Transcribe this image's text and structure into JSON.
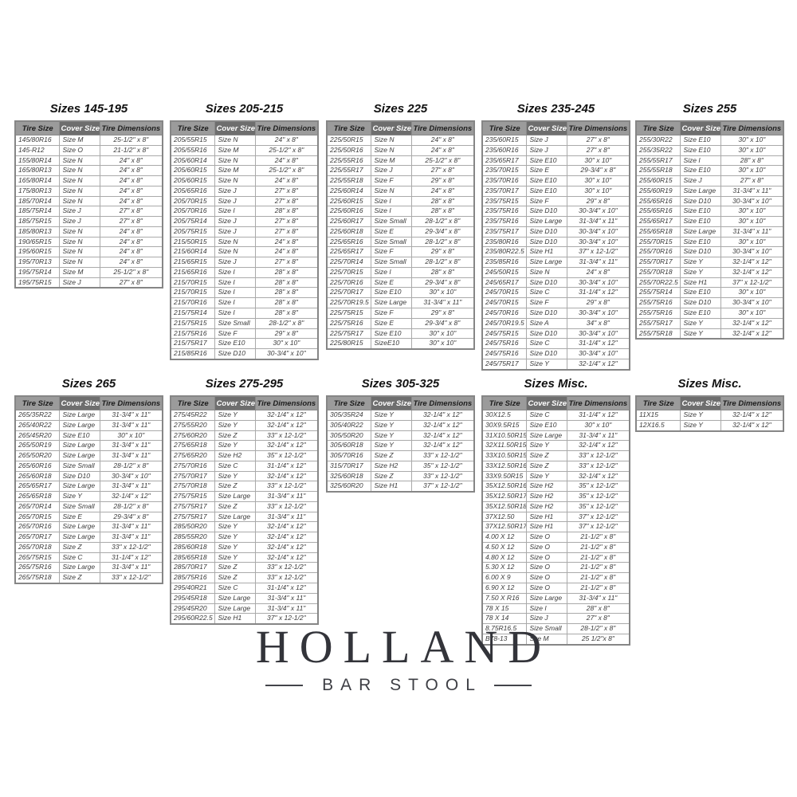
{
  "colors": {
    "header_bg": "#9b9b9b",
    "cover_header_bg": "#6e6e6e",
    "header_text": "#1d1d1d",
    "cover_header_text": "#ffffff",
    "cell_text": "#3a3a3a",
    "border": "#868686",
    "logo_text": "#33343a"
  },
  "column_headers": [
    "Tire Size",
    "Cover Size",
    "Tire Dimensions"
  ],
  "tables": [
    {
      "title": "Sizes 145-195",
      "rows": [
        [
          "145/80R16",
          "Size M",
          "25-1/2\" x 8\""
        ],
        [
          "145-R12",
          "Size O",
          "21-1/2\" x 8\""
        ],
        [
          "155/80R14",
          "Size N",
          "24\" x 8\""
        ],
        [
          "165/80R13",
          "Size N",
          "24\" x 8\""
        ],
        [
          "165/80R14",
          "Size N",
          "24\" x 8\""
        ],
        [
          "175/80R13",
          "Size N",
          "24\" x 8\""
        ],
        [
          "185/70R14",
          "Size N",
          "24\" x 8\""
        ],
        [
          "185/75R14",
          "Size J",
          "27\" x 8\""
        ],
        [
          "185/75R15",
          "Size J",
          "27\" x 8\""
        ],
        [
          "185/80R13",
          "Size N",
          "24\" x 8\""
        ],
        [
          "190/65R15",
          "Size N",
          "24\" x 8\""
        ],
        [
          "195/60R15",
          "Size N",
          "24\" x 8\""
        ],
        [
          "195/70R13",
          "Size N",
          "24\" x 8\""
        ],
        [
          "195/75R14",
          "Size M",
          "25-1/2\" x 8\""
        ],
        [
          "195/75R15",
          "Size J",
          "27\" x 8\""
        ]
      ]
    },
    {
      "title": "Sizes 205-215",
      "rows": [
        [
          "205/55R15",
          "Size N",
          "24\" x 8\""
        ],
        [
          "205/55R16",
          "Size M",
          "25-1/2\" x 8\""
        ],
        [
          "205/60R14",
          "Size N",
          "24\" x 8\""
        ],
        [
          "205/60R15",
          "Size M",
          "25-1/2\" x 8\""
        ],
        [
          "205/60R15",
          "Size N",
          "24\" x 8\""
        ],
        [
          "205/65R16",
          "Size J",
          "27\" x 8\""
        ],
        [
          "205/70R15",
          "Size J",
          "27\" x 8\""
        ],
        [
          "205/70R16",
          "Size I",
          "28\" x 8\""
        ],
        [
          "205/75R14",
          "Size J",
          "27\" x 8\""
        ],
        [
          "205/75R15",
          "Size J",
          "27\" x 8\""
        ],
        [
          "215/50R15",
          "Size N",
          "24\" x 8\""
        ],
        [
          "215/60R14",
          "Size N",
          "24\" x 8\""
        ],
        [
          "215/65R15",
          "Size J",
          "27\" x 8\""
        ],
        [
          "215/65R16",
          "Size I",
          "28\" x 8\""
        ],
        [
          "215/70R15",
          "Size I",
          "28\" x 8\""
        ],
        [
          "215/70R15",
          "Size I",
          "28\" x 8\""
        ],
        [
          "215/70R16",
          "Size I",
          "28\" x 8\""
        ],
        [
          "215/75R14",
          "Size I",
          "28\" x 8\""
        ],
        [
          "215/75R15",
          "Size Small",
          "28-1/2\" x 8\""
        ],
        [
          "215/75R16",
          "Size F",
          "29\" x 8\""
        ],
        [
          "215/75R17",
          "Size E10",
          "30\" x 10\""
        ],
        [
          "215/85R16",
          "Size D10",
          "30-3/4\" x 10\""
        ]
      ]
    },
    {
      "title": "Sizes 225",
      "rows": [
        [
          "225/50R15",
          "Size N",
          "24\" x 8\""
        ],
        [
          "225/50R16",
          "Size N",
          "24\" x 8\""
        ],
        [
          "225/55R16",
          "Size M",
          "25-1/2\" x 8\""
        ],
        [
          "225/55R17",
          "Size J",
          "27\" x 8\""
        ],
        [
          "225/55R18",
          "Size F",
          "29\" x 8\""
        ],
        [
          "225/60R14",
          "Size N",
          "24\" x 8\""
        ],
        [
          "225/60R15",
          "Size I",
          "28\" x 8\""
        ],
        [
          "225/60R16",
          "Size I",
          "28\" x 8\""
        ],
        [
          "225/60R17",
          "Size Small",
          "28-1/2\" x 8\""
        ],
        [
          "225/60R18",
          "Size E",
          "29-3/4\" x 8\""
        ],
        [
          "225/65R16",
          "Size Small",
          "28-1/2\" x 8\""
        ],
        [
          "225/65R17",
          "Size F",
          "29\" x 8\""
        ],
        [
          "225/70R14",
          "Size Small",
          "28-1/2\" x 8\""
        ],
        [
          "225/70R15",
          "Size I",
          "28\" x 8\""
        ],
        [
          "225/70R16",
          "Size E",
          "29-3/4\" x 8\""
        ],
        [
          "225/70R17",
          "Size E10",
          "30\" x 10\""
        ],
        [
          "225/70R19.5",
          "Size Large",
          "31-3/4\" x 11\""
        ],
        [
          "225/75R15",
          "Size F",
          "29\" x 8\""
        ],
        [
          "225/75R16",
          "Size E",
          "29-3/4\" x 8\""
        ],
        [
          "225/75R17",
          "Size E10",
          "30\" x 10\""
        ],
        [
          "225/80R15",
          "SizeE10",
          "30\" x 10\""
        ]
      ]
    },
    {
      "title": "Sizes 235-245",
      "rows": [
        [
          "235/60R15",
          "Size J",
          "27\" x 8\""
        ],
        [
          "235/60R16",
          "Size J",
          "27\" x 8\""
        ],
        [
          "235/65R17",
          "Size E10",
          "30\" x 10\""
        ],
        [
          "235/70R15",
          "Size E",
          "29-3/4\" x 8\""
        ],
        [
          "235/70R16",
          "Size E10",
          "30\" x 10\""
        ],
        [
          "235/70R17",
          "Size E10",
          "30\" x 10\""
        ],
        [
          "235/75R15",
          "Size F",
          "29\" x 8\""
        ],
        [
          "235/75R16",
          "Size D10",
          "30-3/4\" x 10\""
        ],
        [
          "235/75R16",
          "Size Large",
          "31-3/4\" x 11\""
        ],
        [
          "235/75R17",
          "Size D10",
          "30-3/4\" x 10\""
        ],
        [
          "235/80R16",
          "Size D10",
          "30-3/4\" x 10\""
        ],
        [
          "235/80R22.5",
          "Size H1",
          "37\" x 12-1/2\""
        ],
        [
          "235/85R16",
          "Size Large",
          "31-3/4\" x 11\""
        ],
        [
          "245/50R15",
          "Size N",
          "24\" x 8\""
        ],
        [
          "245/65R17",
          "Size D10",
          "30-3/4\" x 10\""
        ],
        [
          "245/70R15",
          "Size C",
          "31-1/4\" x 12\""
        ],
        [
          "245/70R15",
          "Size F",
          "29\" x 8\""
        ],
        [
          "245/70R16",
          "Size D10",
          "30-3/4\" x 10\""
        ],
        [
          "245/70R19.5",
          "Size A",
          "34\" x 8\""
        ],
        [
          "245/75R15",
          "Size D10",
          "30-3/4\" x 10\""
        ],
        [
          "245/75R16",
          "Size C",
          "31-1/4\" x 12\""
        ],
        [
          "245/75R16",
          "Size D10",
          "30-3/4\" x 10\""
        ],
        [
          "245/75R17",
          "Size Y",
          "32-1/4\" x 12\""
        ]
      ]
    },
    {
      "title": "Sizes 255",
      "rows": [
        [
          "255/30R22",
          "Size E10",
          "30\" x 10\""
        ],
        [
          "255/35R22",
          "Size E10",
          "30\" x 10\""
        ],
        [
          "255/55R17",
          "Size I",
          "28\" x 8\""
        ],
        [
          "255/55R18",
          "Size E10",
          "30\" x 10\""
        ],
        [
          "255/60R15",
          "Size J",
          "27\" x 8\""
        ],
        [
          "255/60R19",
          "Size Large",
          "31-3/4\" x 11\""
        ],
        [
          "255/65R16",
          "Size D10",
          "30-3/4\" x 10\""
        ],
        [
          "255/65R16",
          "Size E10",
          "30\" x 10\""
        ],
        [
          "255/65R17",
          "Size E10",
          "30\" x 10\""
        ],
        [
          "255/65R18",
          "Size Large",
          "31-3/4\" x 11\""
        ],
        [
          "255/70R15",
          "Size E10",
          "30\" x 10\""
        ],
        [
          "255/70R16",
          "Size D10",
          "30-3/4\" x 10\""
        ],
        [
          "255/70R17",
          "Size Y",
          "32-1/4\" x 12\""
        ],
        [
          "255/70R18",
          "Size Y",
          "32-1/4\" x 12\""
        ],
        [
          "255/70R22.5",
          "Size H1",
          "37\" x 12-1/2\""
        ],
        [
          "255/75R14",
          "Size E10",
          "30\" x 10\""
        ],
        [
          "255/75R16",
          "Size D10",
          "30-3/4\" x 10\""
        ],
        [
          "255/75R16",
          "Size E10",
          "30\" x 10\""
        ],
        [
          "255/75R17",
          "Size Y",
          "32-1/4\" x 12\""
        ],
        [
          "255/75R18",
          "Size Y",
          "32-1/4\" x 12\""
        ]
      ]
    },
    {
      "title": "Sizes 265",
      "rows": [
        [
          "265/35R22",
          "Size Large",
          "31-3/4\" x 11\""
        ],
        [
          "265/40R22",
          "Size Large",
          "31-3/4\" x 11\""
        ],
        [
          "265/45R20",
          "Size E10",
          "30\" x 10\""
        ],
        [
          "265/50R19",
          "Size Large",
          "31-3/4\" x 11\""
        ],
        [
          "265/50R20",
          "Size Large",
          "31-3/4\" x 11\""
        ],
        [
          "265/60R16",
          "Size Small",
          "28-1/2\" x 8\""
        ],
        [
          "265/60R18",
          "Size D10",
          "30-3/4\" x 10\""
        ],
        [
          "265/65R17",
          "Size Large",
          "31-3/4\" x 11\""
        ],
        [
          "265/65R18",
          "Size Y",
          "32-1/4\" x 12\""
        ],
        [
          "265/70R14",
          "Size Small",
          "28-1/2\" x 8\""
        ],
        [
          "265/70R15",
          "Size E",
          "29-3/4\" x 8\""
        ],
        [
          "265/70R16",
          "Size Large",
          "31-3/4\" x 11\""
        ],
        [
          "265/70R17",
          "Size Large",
          "31-3/4\" x 11\""
        ],
        [
          "265/70R18",
          "Size Z",
          "33\" x 12-1/2\""
        ],
        [
          "265/75R15",
          "Size C",
          "31-1/4\" x 12\""
        ],
        [
          "265/75R16",
          "Size Large",
          "31-3/4\" x 11\""
        ],
        [
          "265/75R18",
          "Size Z",
          "33\" x 12-1/2\""
        ]
      ]
    },
    {
      "title": "Sizes 275-295",
      "rows": [
        [
          "275/45R22",
          "Size Y",
          "32-1/4\" x 12\""
        ],
        [
          "275/55R20",
          "Size Y",
          "32-1/4\" x 12\""
        ],
        [
          "275/60R20",
          "Size Z",
          "33\" x 12-1/2\""
        ],
        [
          "275/65R18",
          "Size Y",
          "32-1/4\" x 12\""
        ],
        [
          "275/65R20",
          "Size H2",
          "35\" x 12-1/2\""
        ],
        [
          "275/70R16",
          "Size C",
          "31-1/4\" x 12\""
        ],
        [
          "275/70R17",
          "Size Y",
          "32-1/4\" x 12\""
        ],
        [
          "275/70R18",
          "Size Z",
          "33\" x 12-1/2\""
        ],
        [
          "275/75R15",
          "Size Large",
          "31-3/4\" x 11\""
        ],
        [
          "275/75R17",
          "Size Z",
          "33\" x 12-1/2\""
        ],
        [
          "275/75R17",
          "Size Large",
          "31-3/4\" x 11\""
        ],
        [
          "285/50R20",
          "Size Y",
          "32-1/4\" x 12\""
        ],
        [
          "285/55R20",
          "Size Y",
          "32-1/4\" x 12\""
        ],
        [
          "285/60R18",
          "Size Y",
          "32-1/4\" x 12\""
        ],
        [
          "285/65R18",
          "Size Y",
          "32-1/4\" x 12\""
        ],
        [
          "285/70R17",
          "Size Z",
          "33\" x 12-1/2\""
        ],
        [
          "285/75R16",
          "Size Z",
          "33\" x 12-1/2\""
        ],
        [
          "295/40R21",
          "Size C",
          "31-1/4\" x 12\""
        ],
        [
          "295/45R18",
          "Size Large",
          "31-3/4\" x 11\""
        ],
        [
          "295/45R20",
          "Size Large",
          "31-3/4\" x 11\""
        ],
        [
          "295/60R22.5",
          "Size H1",
          "37\" x 12-1/2\""
        ]
      ]
    },
    {
      "title": "Sizes 305-325",
      "rows": [
        [
          "305/35R24",
          "Size Y",
          "32-1/4\" x 12\""
        ],
        [
          "305/40R22",
          "Size Y",
          "32-1/4\" x 12\""
        ],
        [
          "305/50R20",
          "Size Y",
          "32-1/4\" x 12\""
        ],
        [
          "305/60R18",
          "Size Y",
          "32-1/4\" x 12\""
        ],
        [
          "305/70R16",
          "Size Z",
          "33\" x 12-1/2\""
        ],
        [
          "315/70R17",
          "Size H2",
          "35\" x 12-1/2\""
        ],
        [
          "325/60R18",
          "Size Z",
          "33\" x 12-1/2\""
        ],
        [
          "325/60R20",
          "Size H1",
          "37\" x 12-1/2\""
        ]
      ]
    },
    {
      "title": "Sizes Misc.",
      "rows": [
        [
          "30X12.5",
          "Size C",
          "31-1/4\" x 12\""
        ],
        [
          "30X9.5R15",
          "Size E10",
          "30\" x 10\""
        ],
        [
          "31X10.50R15",
          "Size Large",
          "31-3/4\" x 11\""
        ],
        [
          "32X11.50R15",
          "Size Y",
          "32-1/4\" x 12\""
        ],
        [
          "33X10.50R15",
          "Size Z",
          "33\" x 12-1/2\""
        ],
        [
          "33X12.50R16",
          "Size Z",
          "33\" x 12-1/2\""
        ],
        [
          "33X9.50R15",
          "Size Y",
          "32-1/4\" x 12\""
        ],
        [
          "35X12.50R16",
          "Size H2",
          "35\" x 12-1/2\""
        ],
        [
          "35X12.50R17",
          "Size H2",
          "35\" x 12-1/2\""
        ],
        [
          "35X12.50R18",
          "Size H2",
          "35\" x 12-1/2\""
        ],
        [
          "37X12.50",
          "Size H1",
          "37\" x 12-1/2\""
        ],
        [
          "37X12.50R17",
          "Size H1",
          "37\" x 12-1/2\""
        ],
        [
          "4.00 X 12",
          "Size O",
          "21-1/2\" x 8\""
        ],
        [
          "4.50 X 12",
          "Size O",
          "21-1/2\" x 8\""
        ],
        [
          "4.80 X 12",
          "Size O",
          "21-1/2\" x 8\""
        ],
        [
          "5.30 X 12",
          "Size O",
          "21-1/2\" x 8\""
        ],
        [
          "6.00 X 9",
          "Size O",
          "21-1/2\" x 8\""
        ],
        [
          "6.90 X 12",
          "Size O",
          "21-1/2\" x 8\""
        ],
        [
          "7.50 X R16",
          "Size Large",
          "31-3/4\" x 11\""
        ],
        [
          "78 X 15",
          "Size I",
          "28\" x 8\""
        ],
        [
          "78 X 14",
          "Size J",
          "27\" x 8\""
        ],
        [
          "8.75R16.5",
          "Size Small",
          "28-1/2\" x 8\""
        ],
        [
          "B78-13",
          "Ske M",
          "25 1/2\"x 8\""
        ]
      ]
    },
    {
      "title": "Sizes Misc.",
      "rows": [
        [
          "11X15",
          "Size Y",
          "32-1/4\" x 12\""
        ],
        [
          "12X16.5",
          "Size Y",
          "32-1/4\" x 12\""
        ]
      ]
    }
  ],
  "logo": {
    "brand": "HOLLAND",
    "tagline": "BAR STOOL"
  }
}
